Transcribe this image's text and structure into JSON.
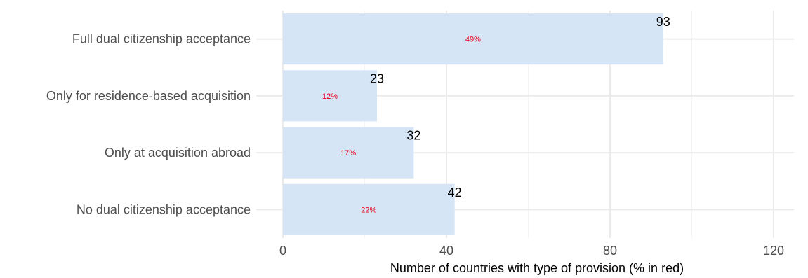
{
  "chart_data": {
    "type": "bar",
    "orientation": "horizontal",
    "categories": [
      "Full dual citizenship acceptance",
      "Only for residence-based acquisition",
      "Only at acquisition abroad",
      "No dual citizenship acceptance"
    ],
    "values": [
      93,
      23,
      32,
      42
    ],
    "percent_labels": [
      "49%",
      "12%",
      "17%",
      "22%"
    ],
    "xlabel": "Number of countries with type of provision (% in red)",
    "ylabel": "",
    "title": "",
    "xlim": [
      0,
      125
    ],
    "xticks": [
      0,
      40,
      80,
      120
    ],
    "xtick_labels": [
      "0",
      "40",
      "80",
      "120"
    ],
    "grid": true,
    "colors": {
      "bar": "#d6e5f5",
      "percent_text": "#e8001c",
      "grid_major": "#ebebeb",
      "grid_minor": "#f4f4f4"
    }
  }
}
